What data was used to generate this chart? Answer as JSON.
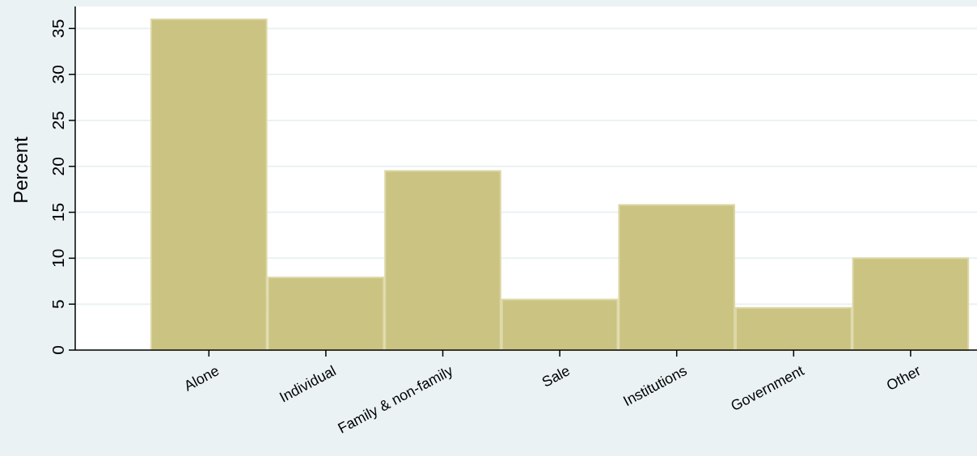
{
  "chart_data": {
    "type": "bar",
    "ylabel": "Percent",
    "categories": [
      "Alone",
      "Individual",
      "Family & non-family",
      "Sale",
      "Institutions",
      "Government",
      "Other"
    ],
    "values": [
      36,
      7.9,
      19.5,
      5.5,
      15.8,
      4.6,
      10
    ],
    "color": "#cbc382",
    "ylim": [
      0,
      37.4
    ],
    "yticks": [
      0,
      5,
      10,
      15,
      20,
      25,
      30,
      35
    ],
    "grid": "y"
  }
}
